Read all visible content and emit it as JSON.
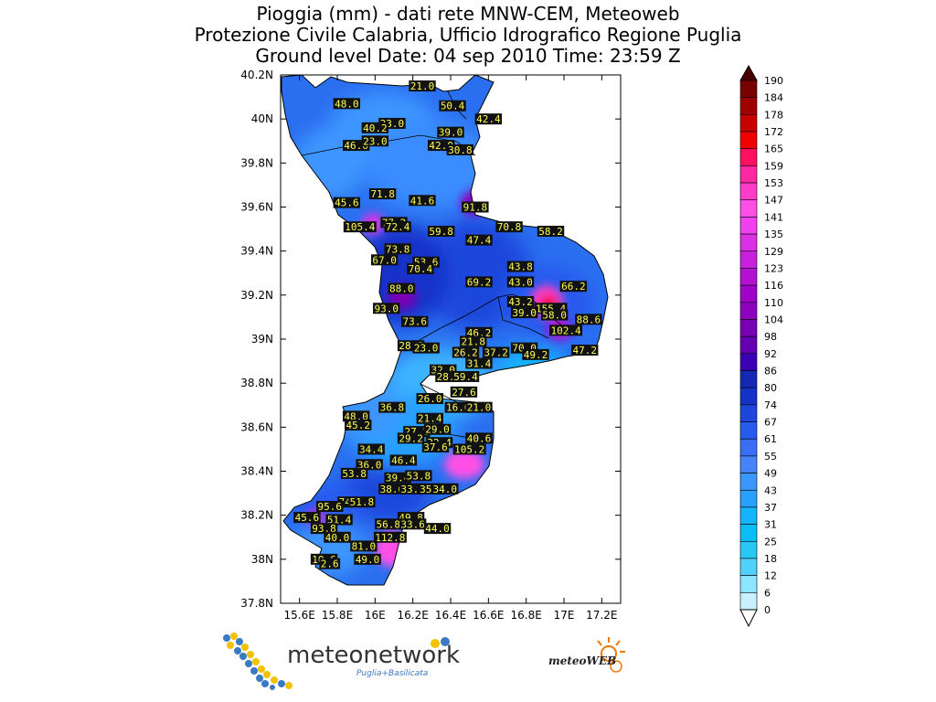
{
  "header": {
    "line1": "Pioggia (mm) - dati rete MNW-CEM, Meteoweb",
    "line2": "Protezione Civile Calabria, Ufficio Idrografico Regione Puglia",
    "line3": "Ground level    Date: 04 sep 2010   Time: 23:59 Z"
  },
  "axes": {
    "y_ticks": [
      "40.2N",
      "40N",
      "39.8N",
      "39.6N",
      "39.4N",
      "39.2N",
      "39N",
      "38.8N",
      "38.6N",
      "38.4N",
      "38.2N",
      "38N",
      "37.8N"
    ],
    "x_ticks": [
      "15.6E",
      "15.8E",
      "16E",
      "16.2E",
      "16.4E",
      "16.6E",
      "16.8E",
      "17E",
      "17.2E"
    ]
  },
  "colorbar": {
    "levels": [
      "190",
      "184",
      "178",
      "172",
      "165",
      "159",
      "153",
      "147",
      "141",
      "135",
      "129",
      "123",
      "116",
      "110",
      "104",
      "98",
      "92",
      "86",
      "80",
      "74",
      "67",
      "61",
      "55",
      "49",
      "43",
      "37",
      "31",
      "25",
      "18",
      "12",
      "6",
      "0"
    ],
    "colors": [
      "#4a0000",
      "#780000",
      "#a00000",
      "#c80000",
      "#f00000",
      "#ff1060",
      "#ff28a0",
      "#ff3cc8",
      "#ff50e6",
      "#f040f0",
      "#dc30e6",
      "#c820dc",
      "#b410d2",
      "#a000c8",
      "#8c00be",
      "#7800b4",
      "#6400b4",
      "#3c00b4",
      "#1428b4",
      "#1432c8",
      "#1e46dc",
      "#285aee",
      "#3c6ef5",
      "#4682fa",
      "#3c96ff",
      "#28a0ff",
      "#14b4ff",
      "#0abef5",
      "#28c8f5",
      "#50d2fa",
      "#8ce6ff",
      "#c8f0ff"
    ]
  },
  "stations": [
    {
      "id": "s1",
      "value": "21.0",
      "lon": 16.25,
      "lat": 40.15
    },
    {
      "id": "s2",
      "value": "48.0",
      "lon": 15.85,
      "lat": 40.07
    },
    {
      "id": "s3",
      "value": "50.4",
      "lon": 16.41,
      "lat": 40.06
    },
    {
      "id": "s4",
      "value": "42.4",
      "lon": 16.6,
      "lat": 40.0
    },
    {
      "id": "s5",
      "value": "33.0",
      "lon": 16.09,
      "lat": 39.98
    },
    {
      "id": "s6",
      "value": "40.2",
      "lon": 16.0,
      "lat": 39.96
    },
    {
      "id": "s7",
      "value": "39.0",
      "lon": 16.4,
      "lat": 39.94
    },
    {
      "id": "s8",
      "value": "46.6",
      "lon": 15.9,
      "lat": 39.88
    },
    {
      "id": "s9",
      "value": "23.0",
      "lon": 16.0,
      "lat": 39.9
    },
    {
      "id": "s10",
      "value": "42.0",
      "lon": 16.35,
      "lat": 39.88
    },
    {
      "id": "s11",
      "value": "30.8",
      "lon": 16.45,
      "lat": 39.86
    },
    {
      "id": "s12",
      "value": "71.8",
      "lon": 16.04,
      "lat": 39.66
    },
    {
      "id": "s13",
      "value": "45.6",
      "lon": 15.85,
      "lat": 39.62
    },
    {
      "id": "s14",
      "value": "41.6",
      "lon": 16.25,
      "lat": 39.63
    },
    {
      "id": "s15",
      "value": "91.8",
      "lon": 16.53,
      "lat": 39.6
    },
    {
      "id": "s16",
      "value": "105.4",
      "lon": 15.92,
      "lat": 39.51
    },
    {
      "id": "s17",
      "value": "77.2",
      "lon": 16.1,
      "lat": 39.53
    },
    {
      "id": "s18",
      "value": "72.4",
      "lon": 16.12,
      "lat": 39.51
    },
    {
      "id": "s19",
      "value": "59.8",
      "lon": 16.35,
      "lat": 39.49
    },
    {
      "id": "s20",
      "value": "70.8",
      "lon": 16.71,
      "lat": 39.51
    },
    {
      "id": "s21",
      "value": "58.2",
      "lon": 16.93,
      "lat": 39.49
    },
    {
      "id": "s22",
      "value": "47.4",
      "lon": 16.55,
      "lat": 39.45
    },
    {
      "id": "s23",
      "value": "73.8",
      "lon": 16.12,
      "lat": 39.41
    },
    {
      "id": "s24",
      "value": "67.0",
      "lon": 16.05,
      "lat": 39.36
    },
    {
      "id": "s25",
      "value": "53.6",
      "lon": 16.27,
      "lat": 39.35
    },
    {
      "id": "s26",
      "value": "70.4",
      "lon": 16.24,
      "lat": 39.32
    },
    {
      "id": "s27",
      "value": "43.8",
      "lon": 16.77,
      "lat": 39.33
    },
    {
      "id": "s28",
      "value": "69.2",
      "lon": 16.55,
      "lat": 39.26
    },
    {
      "id": "s29",
      "value": "43.0",
      "lon": 16.77,
      "lat": 39.26
    },
    {
      "id": "s30",
      "value": "66.2",
      "lon": 17.05,
      "lat": 39.24
    },
    {
      "id": "s31",
      "value": "88.0",
      "lon": 16.14,
      "lat": 39.23
    },
    {
      "id": "s32",
      "value": "43.2",
      "lon": 16.77,
      "lat": 39.17
    },
    {
      "id": "s33",
      "value": "155.4",
      "lon": 16.93,
      "lat": 39.14
    },
    {
      "id": "s34",
      "value": "93.0",
      "lon": 16.06,
      "lat": 39.14
    },
    {
      "id": "s35",
      "value": "39.0",
      "lon": 16.79,
      "lat": 39.12
    },
    {
      "id": "s36",
      "value": "58.0",
      "lon": 16.95,
      "lat": 39.11
    },
    {
      "id": "s37",
      "value": "88.6",
      "lon": 17.13,
      "lat": 39.09
    },
    {
      "id": "s38",
      "value": "73.6",
      "lon": 16.21,
      "lat": 39.08
    },
    {
      "id": "s39",
      "value": "102.4",
      "lon": 17.01,
      "lat": 39.04
    },
    {
      "id": "s40",
      "value": "46.2",
      "lon": 16.55,
      "lat": 39.03
    },
    {
      "id": "s41",
      "value": "21.8",
      "lon": 16.52,
      "lat": 38.99
    },
    {
      "id": "s42",
      "value": "28.6",
      "lon": 16.19,
      "lat": 38.97
    },
    {
      "id": "s43",
      "value": "23.0",
      "lon": 16.27,
      "lat": 38.96
    },
    {
      "id": "s44",
      "value": "70.0",
      "lon": 16.79,
      "lat": 38.96
    },
    {
      "id": "s45",
      "value": "26.2",
      "lon": 16.48,
      "lat": 38.94
    },
    {
      "id": "s46",
      "value": "37.2",
      "lon": 16.64,
      "lat": 38.94
    },
    {
      "id": "s47",
      "value": "47.2",
      "lon": 17.11,
      "lat": 38.95
    },
    {
      "id": "s48",
      "value": "49.2",
      "lon": 16.85,
      "lat": 38.93
    },
    {
      "id": "s49",
      "value": "31.4",
      "lon": 16.55,
      "lat": 38.89
    },
    {
      "id": "s50",
      "value": "32.0",
      "lon": 16.36,
      "lat": 38.86
    },
    {
      "id": "s51",
      "value": "28.4",
      "lon": 16.39,
      "lat": 38.83
    },
    {
      "id": "s52",
      "value": "59.4",
      "lon": 16.48,
      "lat": 38.83
    },
    {
      "id": "s53",
      "value": "27.6",
      "lon": 16.47,
      "lat": 38.76
    },
    {
      "id": "s54",
      "value": "26.0",
      "lon": 16.29,
      "lat": 38.73
    },
    {
      "id": "s55",
      "value": "36.8",
      "lon": 16.09,
      "lat": 38.69
    },
    {
      "id": "s56",
      "value": "16.6",
      "lon": 16.44,
      "lat": 38.69
    },
    {
      "id": "s57",
      "value": "21.0",
      "lon": 16.55,
      "lat": 38.69
    },
    {
      "id": "s58",
      "value": "48.0",
      "lon": 15.9,
      "lat": 38.65
    },
    {
      "id": "s59",
      "value": "21.4",
      "lon": 16.29,
      "lat": 38.64
    },
    {
      "id": "s60",
      "value": "45.2",
      "lon": 15.91,
      "lat": 38.61
    },
    {
      "id": "s61",
      "value": "27.2",
      "lon": 16.22,
      "lat": 38.58
    },
    {
      "id": "s62",
      "value": "29.0",
      "lon": 16.33,
      "lat": 38.59
    },
    {
      "id": "s63",
      "value": "29.2",
      "lon": 16.19,
      "lat": 38.55
    },
    {
      "id": "s64",
      "value": "40.6",
      "lon": 16.55,
      "lat": 38.55
    },
    {
      "id": "s65",
      "value": "32.4",
      "lon": 16.34,
      "lat": 38.53
    },
    {
      "id": "s66",
      "value": "37.6",
      "lon": 16.32,
      "lat": 38.51
    },
    {
      "id": "s67",
      "value": "105.2",
      "lon": 16.5,
      "lat": 38.5
    },
    {
      "id": "s68",
      "value": "34.4",
      "lon": 15.98,
      "lat": 38.5
    },
    {
      "id": "s69",
      "value": "46.4",
      "lon": 16.15,
      "lat": 38.45
    },
    {
      "id": "s70",
      "value": "36.0",
      "lon": 15.97,
      "lat": 38.43
    },
    {
      "id": "s71",
      "value": "53.8",
      "lon": 15.89,
      "lat": 38.39
    },
    {
      "id": "s72",
      "value": "39.4",
      "lon": 16.12,
      "lat": 38.37
    },
    {
      "id": "s73",
      "value": "53.8",
      "lon": 16.23,
      "lat": 38.38
    },
    {
      "id": "s74",
      "value": "38.6",
      "lon": 16.09,
      "lat": 38.32
    },
    {
      "id": "s75",
      "value": "33.8",
      "lon": 16.2,
      "lat": 38.32
    },
    {
      "id": "s76",
      "value": "35.8",
      "lon": 16.3,
      "lat": 38.32
    },
    {
      "id": "s77",
      "value": "34.0",
      "lon": 16.37,
      "lat": 38.32
    },
    {
      "id": "s78",
      "value": "74",
      "lon": 15.84,
      "lat": 38.26
    },
    {
      "id": "s79",
      "value": "51.8",
      "lon": 15.93,
      "lat": 38.26
    },
    {
      "id": "s80",
      "value": "95.6",
      "lon": 15.76,
      "lat": 38.24
    },
    {
      "id": "s81",
      "value": "45.6",
      "lon": 15.64,
      "lat": 38.19
    },
    {
      "id": "s82",
      "value": "51.4",
      "lon": 15.81,
      "lat": 38.18
    },
    {
      "id": "s83",
      "value": "49.8",
      "lon": 16.19,
      "lat": 38.19
    },
    {
      "id": "s84",
      "value": "56.8",
      "lon": 16.07,
      "lat": 38.16
    },
    {
      "id": "s85",
      "value": "33.6",
      "lon": 16.2,
      "lat": 38.16
    },
    {
      "id": "s86",
      "value": "44.0",
      "lon": 16.33,
      "lat": 38.14
    },
    {
      "id": "s87",
      "value": "93.8",
      "lon": 15.73,
      "lat": 38.14
    },
    {
      "id": "s88",
      "value": "112.8",
      "lon": 16.08,
      "lat": 38.1
    },
    {
      "id": "s89",
      "value": "40.0",
      "lon": 15.8,
      "lat": 38.1
    },
    {
      "id": "s90",
      "value": "81.0",
      "lon": 15.94,
      "lat": 38.06
    },
    {
      "id": "s91",
      "value": "10.6",
      "lon": 15.73,
      "lat": 38.0
    },
    {
      "id": "s92",
      "value": "49.0",
      "lon": 15.96,
      "lat": 38.0
    },
    {
      "id": "s93",
      "value": "2.6",
      "lon": 15.76,
      "lat": 37.98
    }
  ],
  "logos": {
    "left_brand": "meteonetwork",
    "left_sub": "Puglia+Basilicata",
    "right_brand": "meteoWEB"
  }
}
